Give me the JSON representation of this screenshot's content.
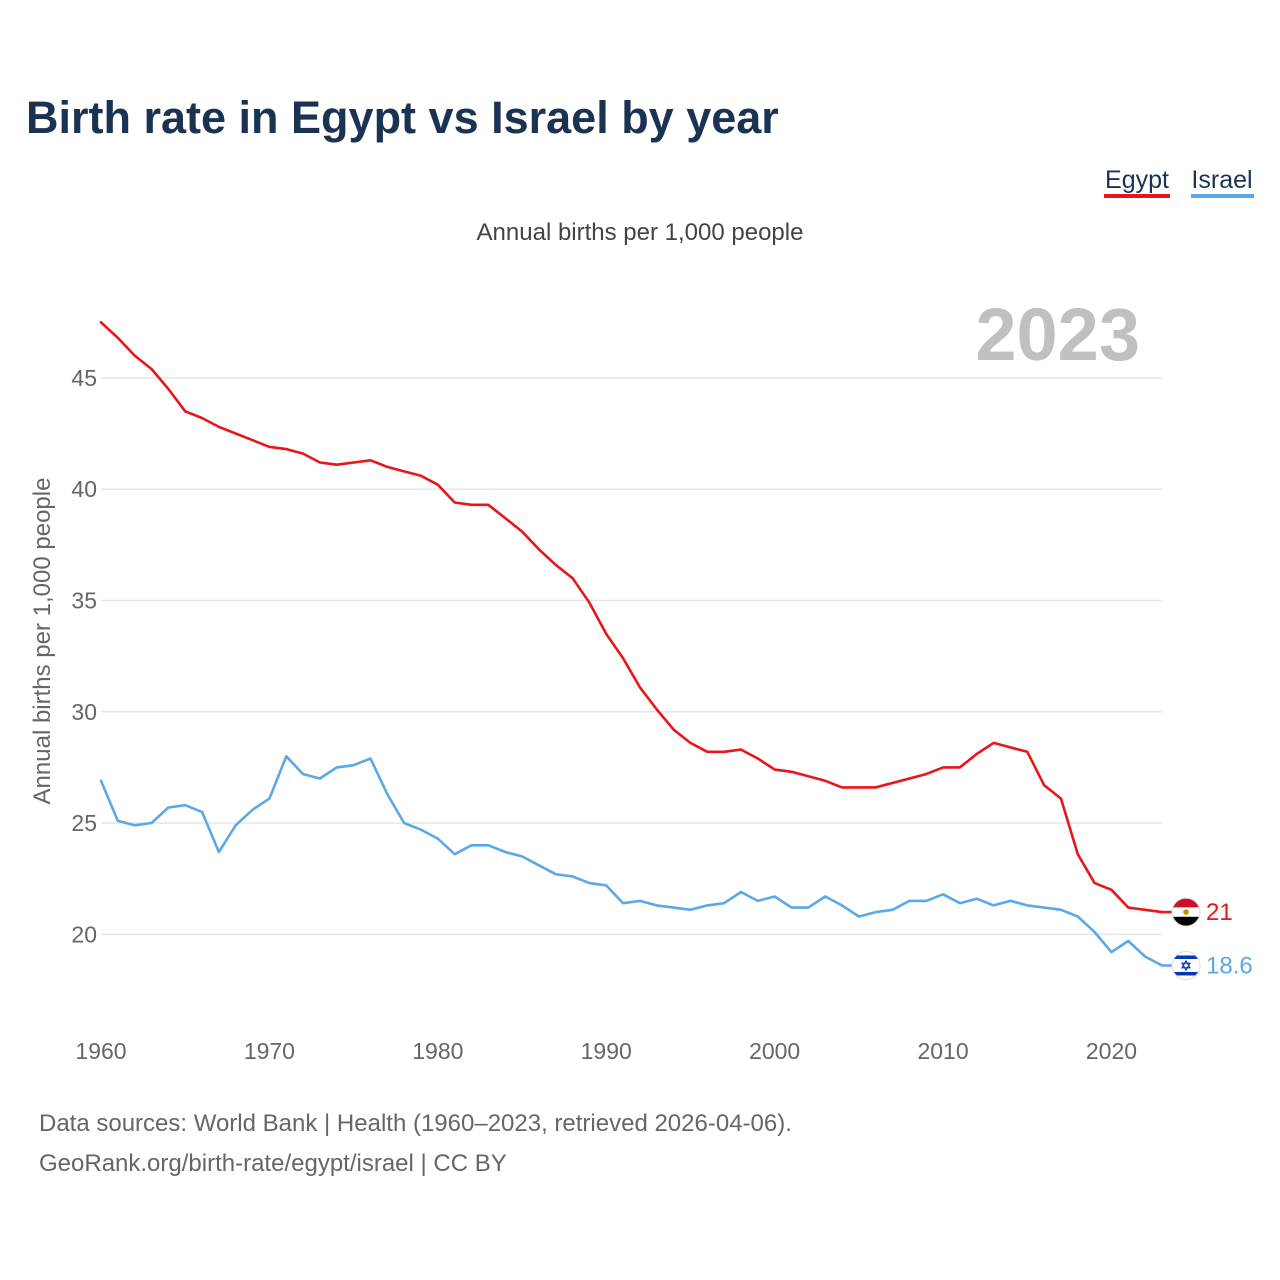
{
  "chart_data": {
    "type": "line",
    "title": "Birth rate in Egypt vs Israel by year",
    "subtitle": "Annual births per 1,000 people",
    "ylabel": "Annual births per 1,000 people",
    "xlabel": "",
    "year_label": "2023",
    "xlim": [
      1960,
      2023
    ],
    "ylim": [
      16.6,
      48.5
    ],
    "x_ticks": [
      1960,
      1970,
      1980,
      1990,
      2000,
      2010,
      2020
    ],
    "y_ticks": [
      20,
      25,
      30,
      35,
      40,
      45
    ],
    "grid": true,
    "legend_position": "top-right",
    "x": [
      1960,
      1961,
      1962,
      1963,
      1964,
      1965,
      1966,
      1967,
      1968,
      1969,
      1970,
      1971,
      1972,
      1973,
      1974,
      1975,
      1976,
      1977,
      1978,
      1979,
      1980,
      1981,
      1982,
      1983,
      1984,
      1985,
      1986,
      1987,
      1988,
      1989,
      1990,
      1991,
      1992,
      1993,
      1994,
      1995,
      1996,
      1997,
      1998,
      1999,
      2000,
      2001,
      2002,
      2003,
      2004,
      2005,
      2006,
      2007,
      2008,
      2009,
      2010,
      2011,
      2012,
      2013,
      2014,
      2015,
      2016,
      2017,
      2018,
      2019,
      2020,
      2021,
      2022,
      2023
    ],
    "series": [
      {
        "name": "Egypt",
        "color": "#e8161b",
        "end_label": "21",
        "values": [
          47.5,
          46.8,
          46.0,
          45.4,
          44.5,
          43.5,
          43.2,
          42.8,
          42.5,
          42.2,
          41.9,
          41.8,
          41.6,
          41.2,
          41.1,
          41.2,
          41.3,
          41.0,
          40.8,
          40.6,
          40.2,
          39.4,
          39.3,
          39.3,
          38.7,
          38.1,
          37.3,
          36.6,
          36.0,
          34.9,
          33.5,
          32.4,
          31.1,
          30.1,
          29.2,
          28.6,
          28.2,
          28.2,
          28.3,
          27.9,
          27.4,
          27.3,
          27.1,
          26.9,
          26.6,
          26.6,
          26.6,
          26.8,
          27.0,
          27.2,
          27.5,
          27.5,
          28.1,
          28.6,
          28.4,
          28.2,
          26.7,
          26.1,
          23.6,
          22.3,
          22.0,
          21.2,
          21.1,
          21.0
        ]
      },
      {
        "name": "Israel",
        "color": "#5ba8e8",
        "end_label": "18.6",
        "values": [
          26.9,
          25.1,
          24.9,
          25.0,
          25.7,
          25.8,
          25.5,
          23.7,
          24.9,
          25.6,
          26.1,
          28.0,
          27.2,
          27.0,
          27.5,
          27.6,
          27.9,
          26.3,
          25.0,
          24.7,
          24.3,
          23.6,
          24.0,
          24.0,
          23.7,
          23.5,
          23.1,
          22.7,
          22.6,
          22.3,
          22.2,
          21.4,
          21.5,
          21.3,
          21.2,
          21.1,
          21.3,
          21.4,
          21.9,
          21.5,
          21.7,
          21.2,
          21.2,
          21.7,
          21.3,
          20.8,
          21.0,
          21.1,
          21.5,
          21.5,
          21.8,
          21.4,
          21.6,
          21.3,
          21.5,
          21.3,
          21.2,
          21.1,
          20.8,
          20.1,
          19.2,
          19.7,
          19.0,
          18.6
        ]
      }
    ],
    "footer": [
      "Data sources: World Bank | Health (1960–2023, retrieved 2026-04-06).",
      "GeoRank.org/birth-rate/egypt/israel | CC BY"
    ]
  }
}
